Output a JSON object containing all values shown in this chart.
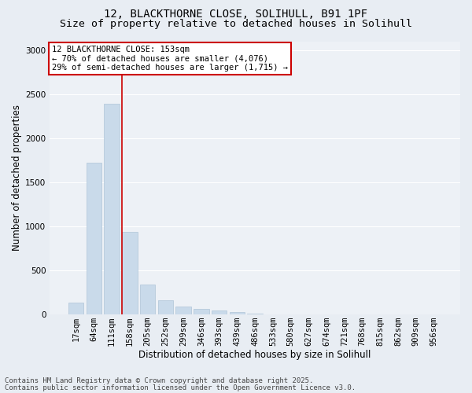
{
  "title_line1": "12, BLACKTHORNE CLOSE, SOLIHULL, B91 1PF",
  "title_line2": "Size of property relative to detached houses in Solihull",
  "xlabel": "Distribution of detached houses by size in Solihull",
  "ylabel": "Number of detached properties",
  "categories": [
    "17sqm",
    "64sqm",
    "111sqm",
    "158sqm",
    "205sqm",
    "252sqm",
    "299sqm",
    "346sqm",
    "393sqm",
    "439sqm",
    "486sqm",
    "533sqm",
    "580sqm",
    "627sqm",
    "674sqm",
    "721sqm",
    "768sqm",
    "815sqm",
    "862sqm",
    "909sqm",
    "956sqm"
  ],
  "values": [
    130,
    1720,
    2390,
    940,
    340,
    160,
    90,
    65,
    45,
    30,
    5,
    0,
    0,
    0,
    0,
    0,
    0,
    0,
    0,
    0,
    0
  ],
  "bar_color": "#c9daea",
  "bar_edgecolor": "#afc4d8",
  "vline_x_index": 2.57,
  "vline_color": "#cc0000",
  "annotation_text": "12 BLACKTHORNE CLOSE: 153sqm\n← 70% of detached houses are smaller (4,076)\n29% of semi-detached houses are larger (1,715) →",
  "annotation_box_color": "#cc0000",
  "ylim": [
    0,
    3100
  ],
  "yticks": [
    0,
    500,
    1000,
    1500,
    2000,
    2500,
    3000
  ],
  "footer_line1": "Contains HM Land Registry data © Crown copyright and database right 2025.",
  "footer_line2": "Contains public sector information licensed under the Open Government Licence v3.0.",
  "bg_color": "#e8edf3",
  "plot_bg_color": "#edf1f6",
  "grid_color": "#ffffff",
  "title_fontsize": 10,
  "subtitle_fontsize": 9.5,
  "label_fontsize": 8.5,
  "tick_fontsize": 7.5,
  "footer_fontsize": 6.5,
  "annot_fontsize": 7.5
}
